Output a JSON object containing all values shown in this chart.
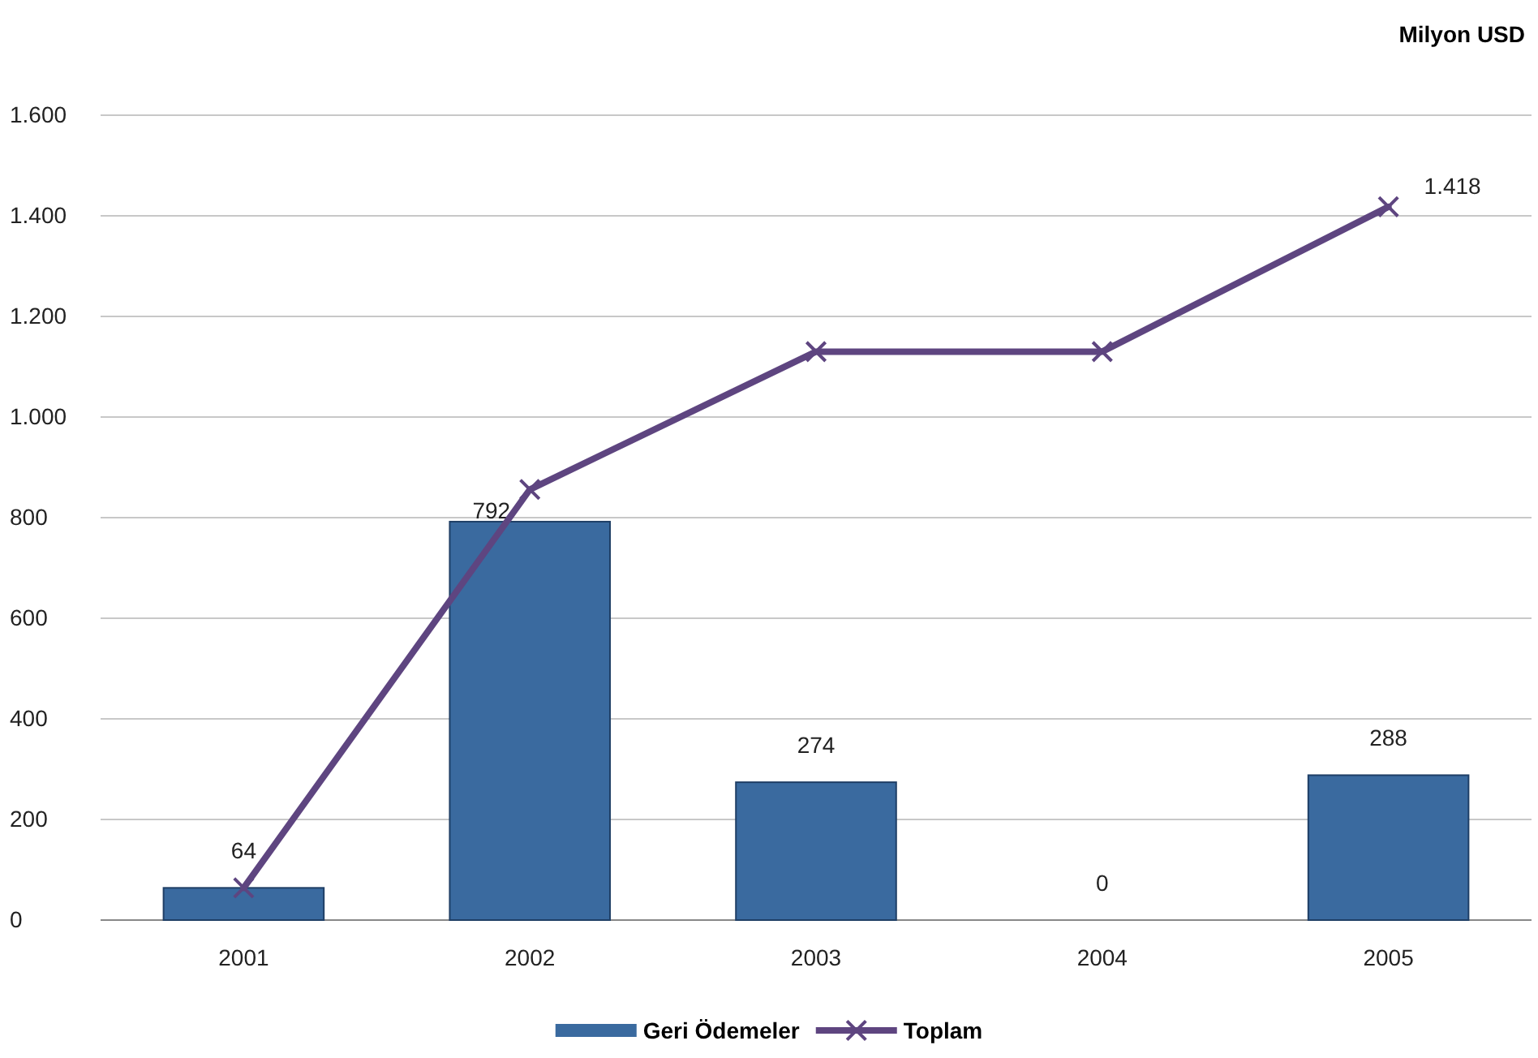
{
  "chart_data": {
    "type": "bar",
    "ylabel": "Milyon USD",
    "categories": [
      "2001",
      "2002",
      "2003",
      "2004",
      "2005"
    ],
    "series": [
      {
        "name": "Geri Ödemeler",
        "color": "#3a6a9f",
        "values": [
          64,
          792,
          274,
          0,
          288
        ],
        "value_labels": [
          "64",
          "792",
          "274",
          "0",
          "288"
        ]
      },
      {
        "name": "Toplam",
        "type": "line",
        "color": "#5e4580",
        "marker": "cross",
        "values": [
          64,
          856,
          1130,
          1130,
          1418
        ],
        "value_labels": [
          null,
          null,
          null,
          null,
          "1.418"
        ]
      }
    ],
    "ylim": [
      0,
      1600
    ],
    "yticks": [
      0,
      200,
      400,
      600,
      800,
      {
        "value": 1000,
        "label": "1.000"
      },
      {
        "value": 1200,
        "label": "1.200"
      },
      {
        "value": 1400,
        "label": "1.400"
      },
      {
        "value": 1600,
        "label": "1.600"
      }
    ],
    "grid": "y",
    "legend": "bottom"
  }
}
